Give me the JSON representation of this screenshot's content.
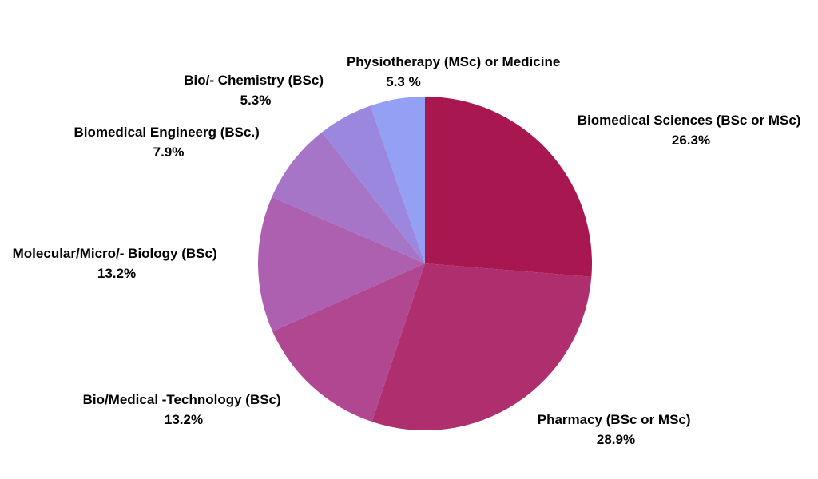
{
  "chart_data": {
    "type": "pie",
    "title": "",
    "start": "top",
    "direction": "clockwise",
    "slices": [
      {
        "label": "Biomedical Sciences (BSc or MSc)",
        "value": 26.3,
        "value_label": "26.3%",
        "color": "#A8174F"
      },
      {
        "label": "Pharmacy (BSc or MSc)",
        "value": 28.9,
        "value_label": "28.9%",
        "color": "#AE2E6E"
      },
      {
        "label": "Bio/Medical -Technology (BSc)",
        "value": 13.2,
        "value_label": "13.2%",
        "color": "#B24791"
      },
      {
        "label": "Molecular/Micro/- Biology (BSc)",
        "value": 13.2,
        "value_label": "13.2%",
        "color": "#AE60B0"
      },
      {
        "label": "Biomedical Engineerg (BSc.)",
        "value": 7.9,
        "value_label": "7.9%",
        "color": "#A675C8"
      },
      {
        "label": "Bio/- Chemistry (BSc)",
        "value": 5.3,
        "value_label": "5.3%",
        "color": "#9C87DF"
      },
      {
        "label": "Physiotherapy (MSc) or Medicine",
        "value": 5.3,
        "value_label": "5.3 %",
        "color": "#93A0F3"
      }
    ]
  }
}
